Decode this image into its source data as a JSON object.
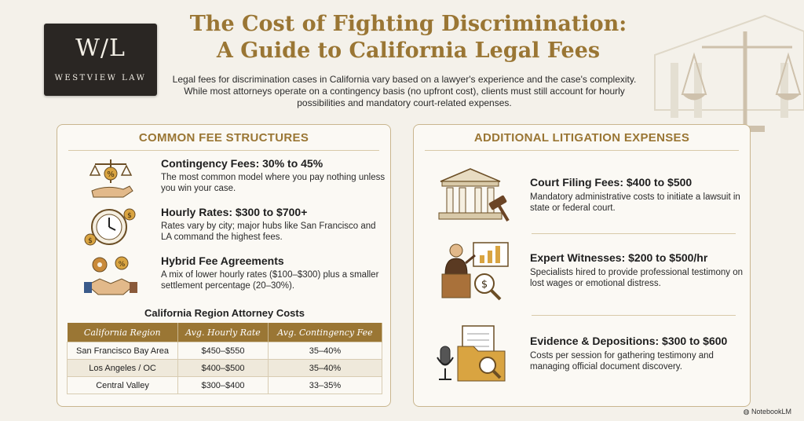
{
  "logo": {
    "mark": "W/L",
    "text": "WESTVIEW LAW"
  },
  "header": {
    "title_line1": "The Cost of Fighting Discrimination:",
    "title_line2": "A Guide to California Legal Fees",
    "subtitle": "Legal fees for discrimination cases in California vary based on a lawyer's experience and the case's complexity. While most attorneys operate on a contingency basis (no upfront cost), clients must still account for hourly possibilities and mandatory court-related expenses."
  },
  "fees": {
    "heading": "COMMON FEE STRUCTURES",
    "items": [
      {
        "title": "Contingency Fees: 30% to 45%",
        "desc": "The most common model where you pay nothing unless you win your case.",
        "icon": "scales-percent-hand-icon"
      },
      {
        "title": "Hourly Rates: $300 to $700+",
        "desc": "Rates vary by city; major hubs like San Francisco and LA command the highest fees.",
        "icon": "clock-coins-icon"
      },
      {
        "title": "Hybrid Fee Agreements",
        "desc": "A mix of lower hourly rates ($100–$300) plus a smaller settlement percentage (20–30%).",
        "icon": "gears-handshake-icon"
      }
    ],
    "table": {
      "title": "California Region Attorney Costs",
      "headers": [
        "California Region",
        "Avg. Hourly Rate",
        "Avg. Contingency Fee"
      ],
      "rows": [
        [
          "San Francisco Bay Area",
          "$450–$550",
          "35–40%"
        ],
        [
          "Los Angeles / OC",
          "$400–$500",
          "35–40%"
        ],
        [
          "Central Valley",
          "$300–$400",
          "33–35%"
        ]
      ]
    }
  },
  "expenses": {
    "heading": "ADDITIONAL LITIGATION EXPENSES",
    "items": [
      {
        "title": "Court Filing Fees: $400 to $500",
        "desc": "Mandatory administrative costs to initiate a lawsuit in state or federal court.",
        "icon": "courthouse-gavel-icon"
      },
      {
        "title": "Expert Witnesses: $200 to $500/hr",
        "desc": "Specialists hired to provide professional testimony on lost wages or emotional distress.",
        "icon": "expert-presenter-icon"
      },
      {
        "title": "Evidence & Depositions: $300 to $600",
        "desc": "Costs per session for gathering testimony and managing official document discovery.",
        "icon": "documents-microphone-icon"
      }
    ]
  },
  "watermark": "NotebookLM",
  "colors": {
    "gold": "#9a7634",
    "dark": "#2a2623",
    "background": "#f4f1ea"
  }
}
